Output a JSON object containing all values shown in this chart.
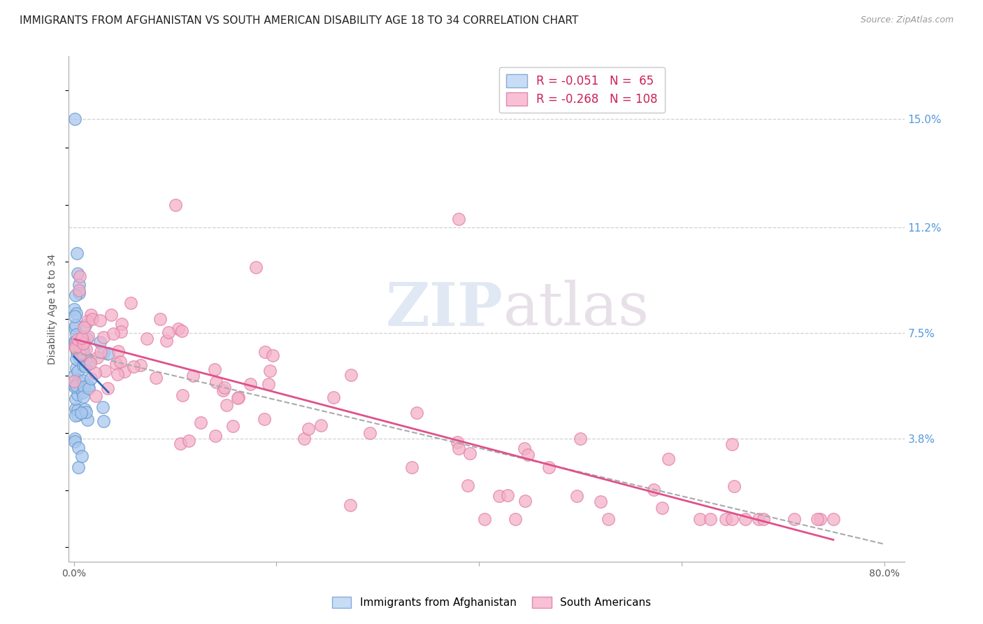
{
  "title": "IMMIGRANTS FROM AFGHANISTAN VS SOUTH AMERICAN DISABILITY AGE 18 TO 34 CORRELATION CHART",
  "source": "Source: ZipAtlas.com",
  "ylabel": "Disability Age 18 to 34",
  "yticks": [
    0.038,
    0.075,
    0.112,
    0.15
  ],
  "ytick_labels": [
    "3.8%",
    "7.5%",
    "11.2%",
    "15.0%"
  ],
  "xlim": [
    -0.005,
    0.82
  ],
  "ylim": [
    -0.005,
    0.172
  ],
  "series1_label": "Immigrants from Afghanistan",
  "series1_color": "#aac8ee",
  "series1_edge": "#6699cc",
  "series1_R": -0.051,
  "series1_N": 65,
  "series2_label": "South Americans",
  "series2_color": "#f4b0c8",
  "series2_edge": "#e080a8",
  "series2_R": -0.268,
  "series2_N": 108,
  "watermark_text": "ZIPatlas",
  "background_color": "#ffffff",
  "grid_color": "#d0d0d0",
  "title_fontsize": 11,
  "ytick_color": "#5599dd",
  "xtick_labels": [
    "0.0%",
    "",
    "",
    "",
    "80.0%"
  ],
  "xtick_positions": [
    0.0,
    0.2,
    0.4,
    0.6,
    0.8
  ]
}
